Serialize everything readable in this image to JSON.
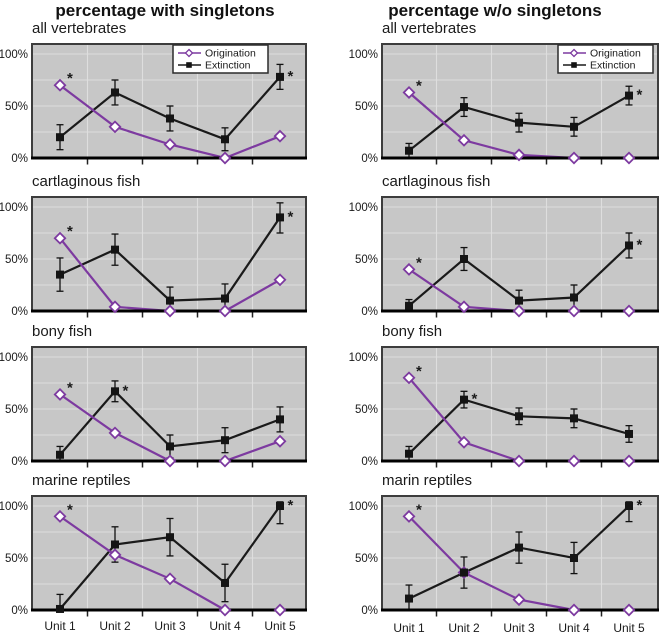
{
  "page": {
    "left_title": "percentage with singletons",
    "right_title": "percentage w/o singletons"
  },
  "legend": {
    "origination_label": "Origination",
    "extinction_label": "Extinction"
  },
  "colors": {
    "origination": "#7d3aa0",
    "extinction": "#1a1a1a",
    "plot_bg": "#c7c7c7",
    "grid": "#dedede",
    "frame": "#3d3d3d",
    "axis": "#000000",
    "text": "#1a1a1a",
    "legend_bg": "#ffffff"
  },
  "axis": {
    "y_tick_labels": [
      "100%",
      "50%",
      "0%"
    ],
    "x_tick_labels": [
      "Unit 1",
      "Unit 2",
      "Unit 3",
      "Unit 4",
      "Unit 5"
    ]
  },
  "chart_data": [
    {
      "type": "line",
      "title": "all vertebrates",
      "panel": "percentage with singletons",
      "categories": [
        "Unit 1",
        "Unit 2",
        "Unit 3",
        "Unit 4",
        "Unit 5"
      ],
      "ylim": [
        0,
        106
      ],
      "y_ticks": [
        0,
        50,
        100
      ],
      "grid_step": 25,
      "legend_visible": true,
      "x_labels_visible": false,
      "series": [
        {
          "name": "Origination",
          "marker": "open-diamond",
          "color": "#7d3aa0",
          "values": [
            70,
            30,
            13,
            0,
            21
          ],
          "star_index": 0
        },
        {
          "name": "Extinction",
          "marker": "filled-square",
          "color": "#1a1a1a",
          "values": [
            20,
            63,
            38,
            18,
            78
          ],
          "errors": [
            12,
            12,
            12,
            11,
            12
          ],
          "star_index": 4
        }
      ]
    },
    {
      "type": "line",
      "title": "all vertebrates",
      "panel": "percentage w/o singletons",
      "categories": [
        "Unit 1",
        "Unit 2",
        "Unit 3",
        "Unit 4",
        "Unit 5"
      ],
      "ylim": [
        0,
        106
      ],
      "y_ticks": [
        0,
        50,
        100
      ],
      "grid_step": 25,
      "legend_visible": true,
      "x_labels_visible": false,
      "series": [
        {
          "name": "Origination",
          "marker": "open-diamond",
          "color": "#7d3aa0",
          "values": [
            63,
            17,
            3,
            0,
            0
          ],
          "star_index": 0
        },
        {
          "name": "Extinction",
          "marker": "filled-square",
          "color": "#1a1a1a",
          "values": [
            7,
            49,
            34,
            30,
            60
          ],
          "errors": [
            7,
            9,
            9,
            9,
            9
          ],
          "star_index": 4
        }
      ]
    },
    {
      "type": "line",
      "title": "cartlaginous fish",
      "panel": "percentage with singletons",
      "categories": [
        "Unit 1",
        "Unit 2",
        "Unit 3",
        "Unit 4",
        "Unit 5"
      ],
      "ylim": [
        0,
        106
      ],
      "y_ticks": [
        0,
        50,
        100
      ],
      "grid_step": 25,
      "legend_visible": false,
      "x_labels_visible": false,
      "series": [
        {
          "name": "Origination",
          "marker": "open-diamond",
          "color": "#7d3aa0",
          "values": [
            70,
            4,
            0,
            0,
            30
          ],
          "star_index": 0
        },
        {
          "name": "Extinction",
          "marker": "filled-square",
          "color": "#1a1a1a",
          "values": [
            35,
            59,
            10,
            12,
            90
          ],
          "errors": [
            16,
            15,
            13,
            14,
            15
          ],
          "star_index": 4
        }
      ]
    },
    {
      "type": "line",
      "title": "cartlaginous fish",
      "panel": "percentage w/o singletons",
      "categories": [
        "Unit 1",
        "Unit 2",
        "Unit 3",
        "Unit 4",
        "Unit 5"
      ],
      "ylim": [
        0,
        106
      ],
      "y_ticks": [
        0,
        50,
        100
      ],
      "grid_step": 25,
      "legend_visible": false,
      "x_labels_visible": false,
      "series": [
        {
          "name": "Origination",
          "marker": "open-diamond",
          "color": "#7d3aa0",
          "values": [
            40,
            4,
            0,
            0,
            0
          ],
          "star_index": 0
        },
        {
          "name": "Extinction",
          "marker": "filled-square",
          "color": "#1a1a1a",
          "values": [
            5,
            50,
            10,
            13,
            63
          ],
          "errors": [
            6,
            11,
            10,
            12,
            12
          ],
          "star_index": 4
        }
      ]
    },
    {
      "type": "line",
      "title": "bony fish",
      "panel": "percentage with singletons",
      "categories": [
        "Unit 1",
        "Unit 2",
        "Unit 3",
        "Unit 4",
        "Unit 5"
      ],
      "ylim": [
        0,
        106
      ],
      "y_ticks": [
        0,
        50,
        100
      ],
      "grid_step": 25,
      "legend_visible": false,
      "x_labels_visible": false,
      "series": [
        {
          "name": "Origination",
          "marker": "open-diamond",
          "color": "#7d3aa0",
          "values": [
            64,
            27,
            0,
            0,
            19
          ],
          "star_index": 0
        },
        {
          "name": "Extinction",
          "marker": "filled-square",
          "color": "#1a1a1a",
          "values": [
            6,
            67,
            14,
            20,
            40
          ],
          "errors": [
            8,
            10,
            11,
            12,
            12
          ],
          "star_index": 1
        }
      ]
    },
    {
      "type": "line",
      "title": "bony fish",
      "panel": "percentage w/o singletons",
      "categories": [
        "Unit 1",
        "Unit 2",
        "Unit 3",
        "Unit 4",
        "Unit 5"
      ],
      "ylim": [
        0,
        106
      ],
      "y_ticks": [
        0,
        50,
        100
      ],
      "grid_step": 25,
      "legend_visible": false,
      "x_labels_visible": false,
      "series": [
        {
          "name": "Origination",
          "marker": "open-diamond",
          "color": "#7d3aa0",
          "values": [
            80,
            18,
            0,
            0,
            0
          ],
          "star_index": 0
        },
        {
          "name": "Extinction",
          "marker": "filled-square",
          "color": "#1a1a1a",
          "values": [
            7,
            59,
            43,
            41,
            26
          ],
          "errors": [
            7,
            8,
            8,
            9,
            8
          ],
          "star_index": 1
        }
      ]
    },
    {
      "type": "line",
      "title": "marine reptiles",
      "panel": "percentage with singletons",
      "categories": [
        "Unit 1",
        "Unit 2",
        "Unit 3",
        "Unit 4",
        "Unit 5"
      ],
      "ylim": [
        0,
        106
      ],
      "y_ticks": [
        0,
        50,
        100
      ],
      "grid_step": 25,
      "legend_visible": false,
      "x_labels_visible": true,
      "series": [
        {
          "name": "Origination",
          "marker": "open-diamond",
          "color": "#7d3aa0",
          "values": [
            90,
            53,
            30,
            0,
            0
          ],
          "star_index": 0
        },
        {
          "name": "Extinction",
          "marker": "filled-square",
          "color": "#1a1a1a",
          "values": [
            1,
            63,
            70,
            26,
            100
          ],
          "errors": [
            14,
            17,
            18,
            18,
            17
          ],
          "star_index": 4
        }
      ]
    },
    {
      "type": "line",
      "title": "marin reptiles",
      "panel": "percentage w/o singletons",
      "categories": [
        "Unit 1",
        "Unit 2",
        "Unit 3",
        "Unit 4",
        "Unit 5"
      ],
      "ylim": [
        0,
        106
      ],
      "y_ticks": [
        0,
        50,
        100
      ],
      "grid_step": 25,
      "legend_visible": false,
      "x_labels_visible": true,
      "series": [
        {
          "name": "Origination",
          "marker": "open-diamond",
          "color": "#7d3aa0",
          "values": [
            90,
            36,
            10,
            0,
            0
          ],
          "star_index": 0
        },
        {
          "name": "Extinction",
          "marker": "filled-square",
          "color": "#1a1a1a",
          "values": [
            11,
            36,
            60,
            50,
            100
          ],
          "errors": [
            13,
            15,
            15,
            15,
            15
          ],
          "star_index": 4
        }
      ]
    }
  ]
}
